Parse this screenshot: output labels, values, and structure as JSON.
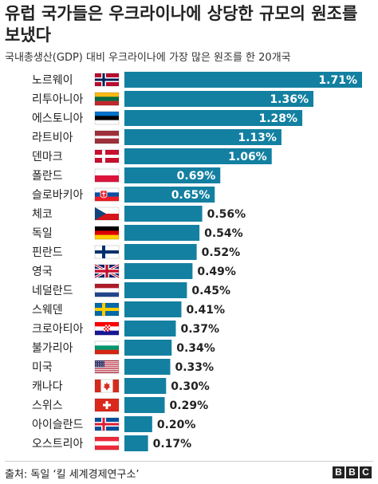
{
  "title": "유럽 국가들은 우크라이나에 상당한 규모의 원조를 보냈다",
  "subtitle": "국내총생산(GDP) 대비 우크라이나에 가장 많은 원조를 한 20개국",
  "source": "출처: 독일 ‘킬 세계경제연구소’",
  "brand": {
    "letters": [
      "B",
      "B",
      "C"
    ]
  },
  "colors": {
    "bar": "#1380a1",
    "label_inside": "#ffffff",
    "label_outside": "#222222"
  },
  "chart_data": {
    "type": "bar",
    "orientation": "horizontal",
    "categories": [
      "노르웨이",
      "리투아니아",
      "에스토니아",
      "라트비아",
      "덴마크",
      "폴란드",
      "슬로바키아",
      "체코",
      "독일",
      "핀란드",
      "영국",
      "네덜란드",
      "스웨덴",
      "크로아티아",
      "불가리아",
      "미국",
      "캐나다",
      "스위스",
      "아이슬란드",
      "오스트리아"
    ],
    "values": [
      1.71,
      1.36,
      1.28,
      1.13,
      1.06,
      0.69,
      0.65,
      0.56,
      0.54,
      0.52,
      0.49,
      0.45,
      0.41,
      0.37,
      0.34,
      0.33,
      0.3,
      0.29,
      0.2,
      0.17
    ],
    "value_labels": [
      "1.71%",
      "1.36%",
      "1.28%",
      "1.13%",
      "1.06%",
      "0.69%",
      "0.65%",
      "0.56%",
      "0.54%",
      "0.52%",
      "0.49%",
      "0.45%",
      "0.41%",
      "0.37%",
      "0.34%",
      "0.33%",
      "0.30%",
      "0.29%",
      "0.20%",
      "0.17%"
    ],
    "flags": [
      "norway-flag-icon",
      "lithuania-flag-icon",
      "estonia-flag-icon",
      "latvia-flag-icon",
      "denmark-flag-icon",
      "poland-flag-icon",
      "slovakia-flag-icon",
      "czechia-flag-icon",
      "germany-flag-icon",
      "finland-flag-icon",
      "uk-flag-icon",
      "netherlands-flag-icon",
      "sweden-flag-icon",
      "croatia-flag-icon",
      "bulgaria-flag-icon",
      "usa-flag-icon",
      "canada-flag-icon",
      "switzerland-flag-icon",
      "iceland-flag-icon",
      "austria-flag-icon"
    ],
    "xlim": [
      0,
      1.71
    ],
    "grid": false,
    "axes_visible": false
  }
}
